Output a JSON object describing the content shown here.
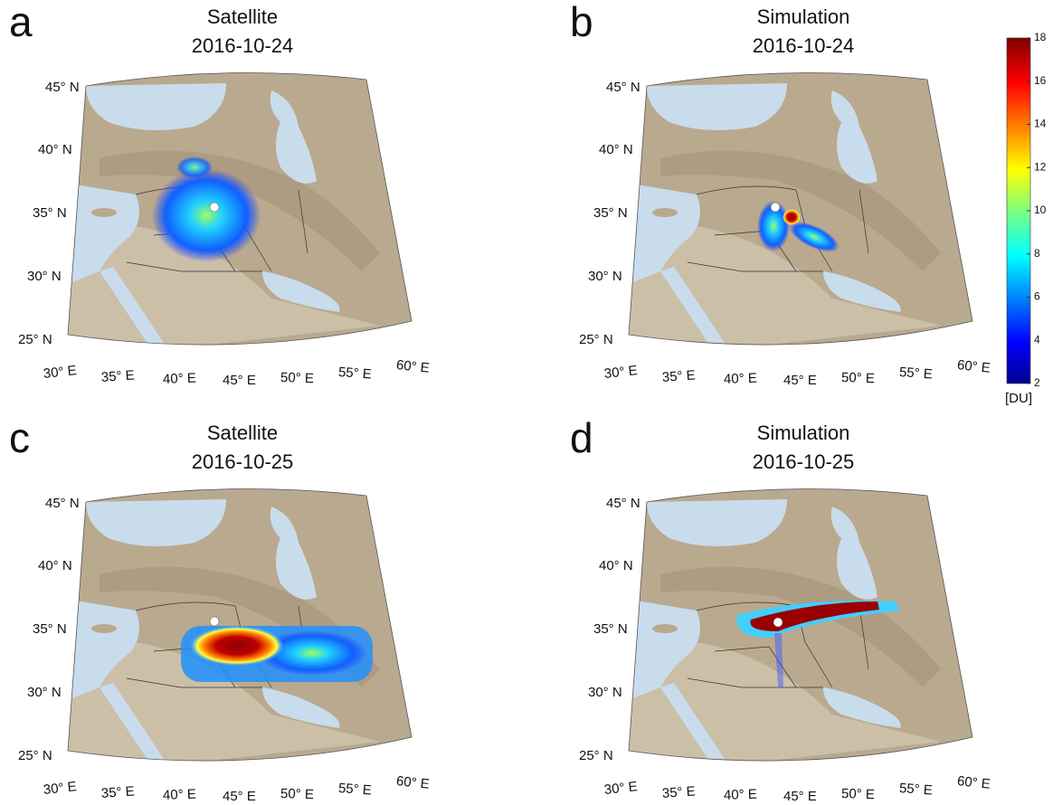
{
  "panels": [
    {
      "letter": "a",
      "title": "Satellite",
      "date": "2016-10-24"
    },
    {
      "letter": "b",
      "title": "Simulation",
      "date": "2016-10-24"
    },
    {
      "letter": "c",
      "title": "Satellite",
      "date": "2016-10-25"
    },
    {
      "letter": "d",
      "title": "Simulation",
      "date": "2016-10-25"
    }
  ],
  "lat_labels": [
    "45° N",
    "40° N",
    "35° N",
    "30° N",
    "25° N"
  ],
  "lon_labels": [
    "30° E",
    "35° E",
    "40° E",
    "45° E",
    "50° E",
    "55° E",
    "60° E"
  ],
  "colorbar": {
    "lim": [
      2,
      18
    ],
    "ticks": [
      2,
      4,
      6,
      8,
      10,
      12,
      14,
      16,
      18
    ],
    "unit": "[DU]"
  }
}
